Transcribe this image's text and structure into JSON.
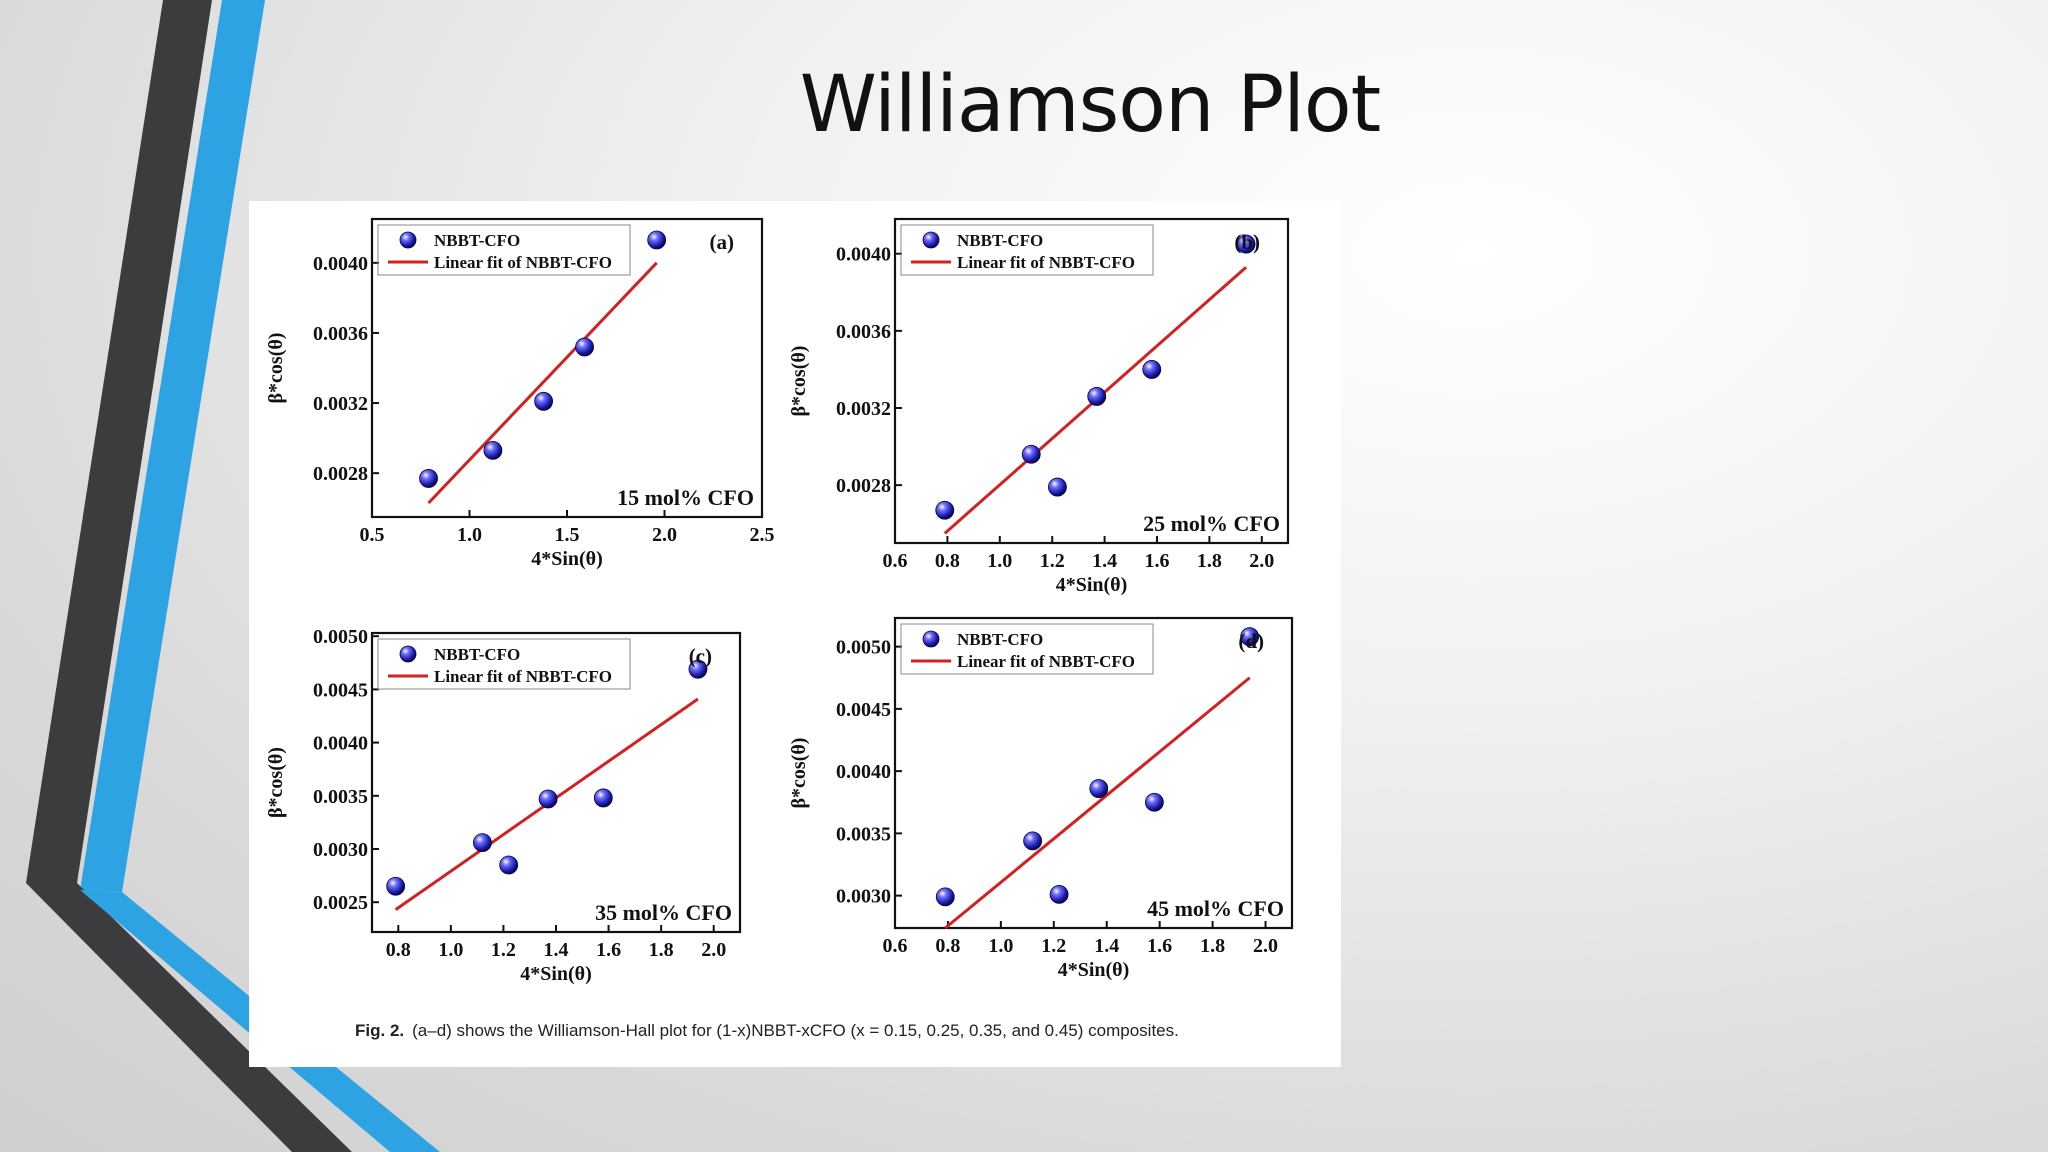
{
  "slide": {
    "title": "Williamson Plot",
    "colors": {
      "accent_blue": "#2ea3e3",
      "dark_gray": "#3c3c3e",
      "fit_line": "#d42020",
      "point": "#1a1aa8"
    }
  },
  "caption": {
    "label": "Fig. 2.",
    "text": "(a–d) shows the Williamson-Hall plot for (1-x)NBBT-xCFO (x = 0.15, 0.25, 0.35, and 0.45) composites."
  },
  "chart_data": [
    {
      "type": "scatter",
      "panel": "(a)",
      "annotation": "15 mol% CFO",
      "xlabel": "4*Sin(θ)",
      "ylabel": "β*cos(θ)",
      "xlim": [
        0.5,
        2.5
      ],
      "ylim": [
        0.00255,
        0.00425
      ],
      "xticks": [
        0.5,
        1.0,
        1.5,
        2.0,
        2.5
      ],
      "xtick_labels": [
        "0.5",
        "1.0",
        "1.5",
        "2.0",
        "2.5"
      ],
      "yticks": [
        0.0028,
        0.0032,
        0.0036,
        0.004
      ],
      "ytick_labels": [
        "0.0028",
        "0.0032",
        "0.0036",
        "0.0040"
      ],
      "legend": [
        "NBBT-CFO",
        "Linear fit of NBBT-CFO"
      ],
      "legend_position": "top-left",
      "x": [
        0.79,
        1.12,
        1.38,
        1.59,
        1.96
      ],
      "y": [
        0.00277,
        0.00293,
        0.00321,
        0.00352,
        0.00413
      ],
      "fit": {
        "x": [
          0.79,
          1.96
        ],
        "y": [
          0.00263,
          0.004
        ]
      }
    },
    {
      "type": "scatter",
      "panel": "(b)",
      "annotation": "25 mol% CFO",
      "xlabel": "4*Sin(θ)",
      "ylabel": "β*cos(θ)",
      "xlim": [
        0.6,
        2.1
      ],
      "ylim": [
        0.0025,
        0.00418
      ],
      "xticks": [
        0.6,
        0.8,
        1.0,
        1.2,
        1.4,
        1.6,
        1.8,
        2.0
      ],
      "xtick_labels": [
        "0.6",
        "0.8",
        "1.0",
        "1.2",
        "1.4",
        "1.6",
        "1.8",
        "2.0"
      ],
      "yticks": [
        0.0028,
        0.0032,
        0.0036,
        0.004
      ],
      "ytick_labels": [
        "0.0028",
        "0.0032",
        "0.0036",
        "0.0040"
      ],
      "legend": [
        "NBBT-CFO",
        "Linear fit of NBBT-CFO"
      ],
      "legend_position": "top-left",
      "x": [
        0.79,
        1.12,
        1.22,
        1.37,
        1.58,
        1.94
      ],
      "y": [
        0.00267,
        0.00296,
        0.00279,
        0.00326,
        0.0034,
        0.00405
      ],
      "fit": {
        "x": [
          0.79,
          1.94
        ],
        "y": [
          0.00255,
          0.00393
        ]
      }
    },
    {
      "type": "scatter",
      "panel": "(c)",
      "annotation": "35 mol% CFO",
      "xlabel": "4*Sin(θ)",
      "ylabel": "β*cos(θ)",
      "xlim": [
        0.7,
        2.1
      ],
      "ylim": [
        0.00222,
        0.00503
      ],
      "xticks": [
        0.8,
        1.0,
        1.2,
        1.4,
        1.6,
        1.8,
        2.0
      ],
      "xtick_labels": [
        "0.8",
        "1.0",
        "1.2",
        "1.4",
        "1.6",
        "1.8",
        "2.0"
      ],
      "yticks": [
        0.0025,
        0.003,
        0.0035,
        0.004,
        0.0045,
        0.005
      ],
      "ytick_labels": [
        "0.0025",
        "0.0030",
        "0.0035",
        "0.0040",
        "0.0045",
        "0.0050"
      ],
      "legend": [
        "NBBT-CFO",
        "Linear fit of NBBT-CFO"
      ],
      "legend_position": "top-left",
      "x": [
        0.79,
        1.12,
        1.22,
        1.37,
        1.58,
        1.94
      ],
      "y": [
        0.00265,
        0.00306,
        0.00285,
        0.00347,
        0.00348,
        0.00469
      ],
      "fit": {
        "x": [
          0.79,
          1.94
        ],
        "y": [
          0.00243,
          0.00441
        ]
      }
    },
    {
      "type": "scatter",
      "panel": "(d)",
      "annotation": "45 mol% CFO",
      "xlabel": "4*Sin(θ)",
      "ylabel": "β*cos(θ)",
      "xlim": [
        0.6,
        2.1
      ],
      "ylim": [
        0.00274,
        0.00523
      ],
      "xticks": [
        0.6,
        0.8,
        1.0,
        1.2,
        1.4,
        1.6,
        1.8,
        2.0
      ],
      "xtick_labels": [
        "0.6",
        "0.8",
        "1.0",
        "1.2",
        "1.4",
        "1.6",
        "1.8",
        "2.0"
      ],
      "yticks": [
        0.003,
        0.0035,
        0.004,
        0.0045,
        0.005
      ],
      "ytick_labels": [
        "0.0030",
        "0.0035",
        "0.0040",
        "0.0045",
        "0.0050"
      ],
      "legend": [
        "NBBT-CFO",
        "Linear fit of NBBT-CFO"
      ],
      "legend_position": "top-left",
      "x": [
        0.79,
        1.12,
        1.22,
        1.37,
        1.58,
        1.94
      ],
      "y": [
        0.00299,
        0.00344,
        0.00301,
        0.00386,
        0.00375,
        0.00508
      ],
      "fit": {
        "x": [
          0.79,
          1.94
        ],
        "y": [
          0.00274,
          0.00475
        ]
      }
    }
  ]
}
